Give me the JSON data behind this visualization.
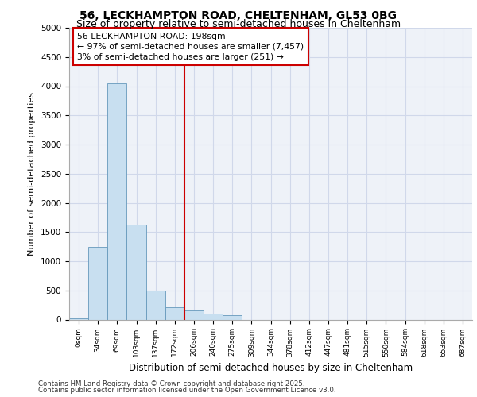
{
  "title1": "56, LECKHAMPTON ROAD, CHELTENHAM, GL53 0BG",
  "title2": "Size of property relative to semi-detached houses in Cheltenham",
  "xlabel": "Distribution of semi-detached houses by size in Cheltenham",
  "ylabel": "Number of semi-detached properties",
  "bar_color": "#c8dff0",
  "bar_edge_color": "#6699bb",
  "vline_color": "#cc0000",
  "annotation_line1": "56 LECKHAMPTON ROAD: 198sqm",
  "annotation_line2": "← 97% of semi-detached houses are smaller (7,457)",
  "annotation_line3": "3% of semi-detached houses are larger (251) →",
  "annotation_box_color": "#cc0000",
  "categories": [
    "0sqm",
    "34sqm",
    "69sqm",
    "103sqm",
    "137sqm",
    "172sqm",
    "206sqm",
    "240sqm",
    "275sqm",
    "309sqm",
    "344sqm",
    "378sqm",
    "412sqm",
    "447sqm",
    "481sqm",
    "515sqm",
    "550sqm",
    "584sqm",
    "618sqm",
    "653sqm",
    "687sqm"
  ],
  "values": [
    20,
    1250,
    4050,
    1625,
    490,
    210,
    150,
    100,
    70,
    0,
    0,
    0,
    0,
    0,
    0,
    0,
    0,
    0,
    0,
    0,
    0
  ],
  "ylim": [
    0,
    5000
  ],
  "yticks": [
    0,
    500,
    1000,
    1500,
    2000,
    2500,
    3000,
    3500,
    4000,
    4500,
    5000
  ],
  "grid_color": "#d0d8ea",
  "bg_color": "#eef2f8",
  "footnote1": "Contains HM Land Registry data © Crown copyright and database right 2025.",
  "footnote2": "Contains public sector information licensed under the Open Government Licence v3.0.",
  "property_bin_index": 5,
  "vline_position": 5.5
}
